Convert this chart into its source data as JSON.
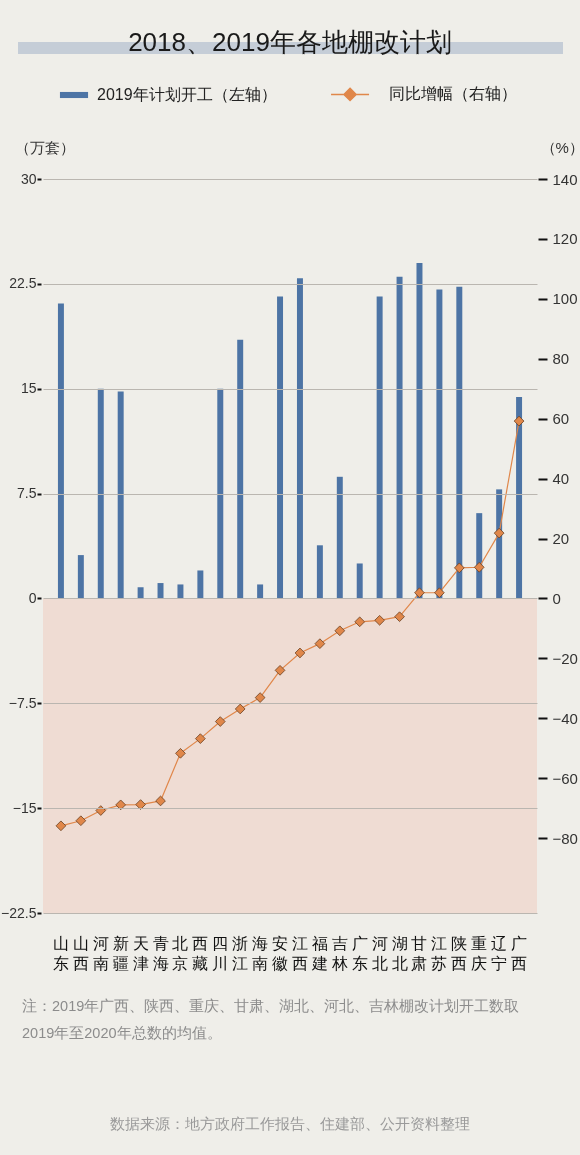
{
  "chart_data": {
    "type": "bar",
    "title": "2018、2019年各地棚改计划",
    "ylabel": "（万套）",
    "y2label": "（%）",
    "categories": [
      "山东",
      "山西",
      "河南",
      "新疆",
      "天津",
      "青海",
      "北京",
      "西藏",
      "四川",
      "浙江",
      "海南",
      "安徽",
      "江西",
      "福建",
      "吉林",
      "广东",
      "河北",
      "湖北",
      "甘肃",
      "江苏",
      "陕西",
      "重庆",
      "辽宁",
      "广西"
    ],
    "series": [
      {
        "name": "2019年计划开工（左轴）",
        "color": "#4d74a5",
        "values": [
          21.1,
          3.1,
          15,
          14.8,
          0.8,
          1.1,
          1.0,
          2.0,
          15,
          18.5,
          1.0,
          21.6,
          22.9,
          3.8,
          8.7,
          2.5,
          21.6,
          23.0,
          24.0,
          22.1,
          22.3,
          6.1,
          7.8,
          14.4
        ]
      },
      {
        "name": "同比增幅（右轴）",
        "type": "line",
        "axis": "y2",
        "color": "#e0874a",
        "values": [
          -75.9,
          -74.2,
          -70.8,
          -68.9,
          -68.8,
          -67.6,
          -51.7,
          -46.8,
          -41.1,
          -36.9,
          -33.1,
          -24.0,
          -18.2,
          -15.1,
          -10.8,
          -7.8,
          -7.3,
          -6.1,
          1.9,
          1.9,
          10.2,
          10.4,
          21.8,
          59.2
        ]
      }
    ],
    "ylim": [
      -22.5,
      30
    ],
    "yticks": [
      30,
      22.5,
      15,
      7.5,
      0,
      -7.5,
      -15,
      -22.5
    ],
    "y2lim": [
      -105,
      140
    ],
    "y2ticks": [
      140,
      120,
      100,
      80,
      60,
      40,
      20,
      0,
      -20,
      -40,
      -60,
      -80
    ],
    "bands": [
      {
        "axis": "y",
        "from": -22.5,
        "to": 0,
        "color": "#efdcd3"
      }
    ],
    "grid": "y",
    "legend": "top",
    "marker": "diamond",
    "line_style": "solid",
    "annotations": [
      "注：2019年广西、陕西、重庆、甘肃、湖北、河北、吉林棚改计划开工数取2019年至2020年总数的均值。",
      "数据来源：地方政府工作报告、住建部、公开资料整理"
    ]
  }
}
